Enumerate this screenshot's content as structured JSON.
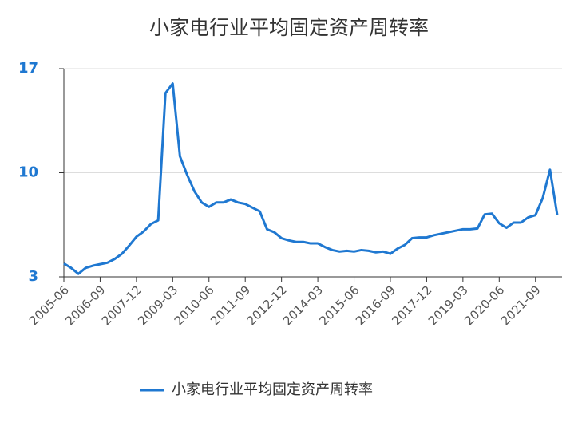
{
  "chart_data": {
    "type": "line",
    "title": "小家电行业平均固定资产周转率",
    "categories": [
      "2005-06",
      null,
      null,
      null,
      null,
      "2006-09",
      null,
      null,
      null,
      null,
      "2007-12",
      null,
      null,
      null,
      null,
      "2009-03",
      null,
      null,
      null,
      null,
      "2010-06",
      null,
      null,
      null,
      null,
      "2011-09",
      null,
      null,
      null,
      null,
      "2012-12",
      null,
      null,
      null,
      null,
      "2014-03",
      null,
      null,
      null,
      null,
      "2015-06",
      null,
      null,
      null,
      null,
      "2016-09",
      null,
      null,
      null,
      null,
      "2017-12",
      null,
      null,
      null,
      null,
      "2019-03",
      null,
      null,
      null,
      null,
      "2020-06",
      null,
      null,
      null,
      null,
      "2021-09",
      null,
      null,
      null
    ],
    "series": [
      {
        "name": "小家电行业平均固定资产周转率",
        "color": "#1f78d1",
        "values": [
          3.9,
          3.6,
          3.2,
          3.6,
          3.75,
          3.85,
          3.95,
          4.2,
          4.55,
          5.1,
          5.7,
          6.05,
          6.55,
          6.8,
          15.35,
          16.0,
          11.1,
          9.85,
          8.75,
          8.0,
          7.7,
          8.0,
          8.0,
          8.2,
          8.0,
          7.9,
          7.65,
          7.4,
          6.2,
          6.0,
          5.6,
          5.45,
          5.35,
          5.35,
          5.25,
          5.25,
          5.0,
          4.8,
          4.7,
          4.75,
          4.7,
          4.8,
          4.75,
          4.65,
          4.7,
          4.55,
          4.9,
          5.15,
          5.6,
          5.65,
          5.65,
          5.8,
          5.9,
          6.0,
          6.1,
          6.2,
          6.2,
          6.25,
          7.2,
          7.25,
          6.6,
          6.3,
          6.65,
          6.65,
          7.0,
          7.15,
          8.3,
          10.2,
          7.15
        ]
      }
    ],
    "ylim": [
      3,
      17
    ],
    "yticks": [
      3,
      10,
      17
    ],
    "grid": true,
    "legend": "bottom"
  }
}
